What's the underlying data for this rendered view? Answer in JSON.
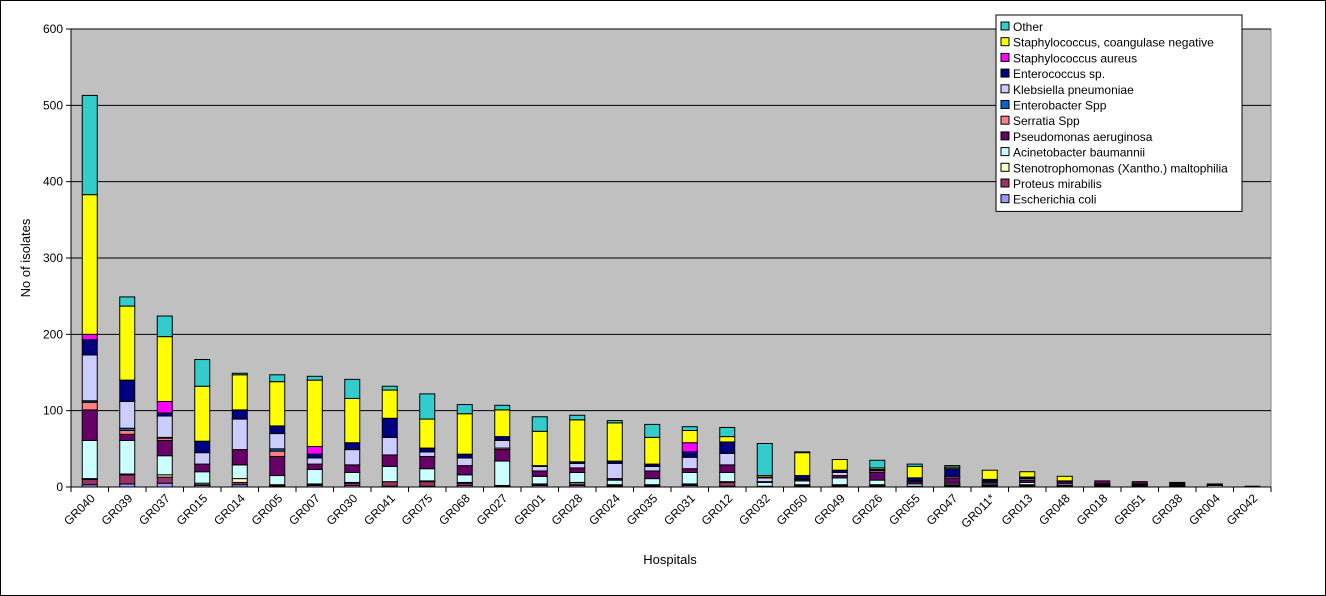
{
  "chart_data": {
    "type": "bar",
    "stacked": true,
    "xlabel": "Hospitals",
    "ylabel": "No of isolates",
    "ylim": [
      0,
      600
    ],
    "yticks": [
      0,
      100,
      200,
      300,
      400,
      500,
      600
    ],
    "grid": true,
    "legend_position": "top-right",
    "categories": [
      "GR040",
      "GR039",
      "GR037",
      "GR015",
      "GR014",
      "GR005",
      "GR007",
      "GR030",
      "GR041",
      "GR075",
      "GR068",
      "GR027",
      "GR001",
      "GR028",
      "GR024",
      "GR035",
      "GR031",
      "GR012",
      "GR032",
      "GR050",
      "GR049",
      "GR026",
      "GR055",
      "GR047",
      "GR011*",
      "GR013",
      "GR048",
      "GR018",
      "GR051",
      "GR038",
      "GR004",
      "GR042"
    ],
    "series": [
      {
        "name": "Escherichia coli",
        "color": "#9999FF",
        "values": [
          3,
          4,
          5,
          2,
          3,
          1,
          2,
          2,
          1,
          1,
          2,
          1,
          2,
          2,
          1,
          1,
          2,
          1,
          0,
          1,
          1,
          1,
          0,
          1,
          1,
          1,
          0,
          1,
          1,
          0,
          0,
          0
        ]
      },
      {
        "name": "Proteus mirabilis",
        "color": "#993366",
        "values": [
          7,
          12,
          8,
          1,
          3,
          1,
          1,
          3,
          6,
          6,
          3,
          1,
          1,
          2,
          1,
          1,
          1,
          5,
          0,
          1,
          1,
          1,
          1,
          1,
          1,
          1,
          1,
          1,
          1,
          1,
          0,
          0
        ]
      },
      {
        "name": "Stenotrophomonas (Xantho.) maltophilia",
        "color": "#FFFFCC",
        "values": [
          1,
          1,
          3,
          2,
          5,
          1,
          1,
          1,
          0,
          1,
          1,
          0,
          1,
          2,
          1,
          1,
          1,
          1,
          1,
          1,
          1,
          1,
          0,
          1,
          1,
          1,
          1,
          1,
          1,
          1,
          2,
          0
        ]
      },
      {
        "name": "Acinetobacter baumannii",
        "color": "#CCFFFF",
        "values": [
          50,
          44,
          25,
          15,
          18,
          12,
          19,
          13,
          20,
          16,
          10,
          32,
          10,
          13,
          6,
          8,
          15,
          12,
          5,
          5,
          9,
          6,
          3,
          2,
          2,
          3,
          2,
          1,
          1,
          1,
          1,
          1
        ]
      },
      {
        "name": "Pseudomonas aeruginosa",
        "color": "#660066",
        "values": [
          40,
          8,
          20,
          10,
          20,
          25,
          7,
          10,
          15,
          16,
          12,
          15,
          7,
          6,
          2,
          10,
          5,
          10,
          1,
          2,
          3,
          10,
          3,
          7,
          2,
          3,
          3,
          4,
          3,
          2,
          0,
          0
        ]
      },
      {
        "name": "Serratia Spp",
        "color": "#FF8080",
        "values": [
          10,
          5,
          3,
          0,
          0,
          7,
          0,
          0,
          0,
          0,
          0,
          2,
          0,
          0,
          0,
          0,
          0,
          0,
          0,
          0,
          0,
          0,
          0,
          0,
          0,
          0,
          0,
          0,
          0,
          0,
          0,
          0
        ]
      },
      {
        "name": "Enterobacter Spp",
        "color": "#0066CC",
        "values": [
          2,
          3,
          1,
          0,
          0,
          3,
          0,
          0,
          0,
          0,
          0,
          0,
          0,
          0,
          0,
          0,
          0,
          0,
          0,
          0,
          0,
          0,
          0,
          0,
          0,
          0,
          0,
          0,
          0,
          0,
          0,
          0
        ]
      },
      {
        "name": "Klebsiella pneumoniae",
        "color": "#CCCCFF",
        "values": [
          60,
          35,
          28,
          15,
          40,
          20,
          8,
          20,
          23,
          6,
          10,
          10,
          6,
          6,
          20,
          6,
          15,
          15,
          5,
          1,
          4,
          2,
          1,
          2,
          1,
          2,
          1,
          0,
          0,
          0,
          0,
          0
        ]
      },
      {
        "name": "Enterococcus sp.",
        "color": "#000080",
        "values": [
          20,
          28,
          4,
          15,
          12,
          10,
          5,
          9,
          25,
          5,
          5,
          5,
          1,
          2,
          3,
          3,
          7,
          15,
          1,
          4,
          3,
          2,
          4,
          10,
          2,
          2,
          0,
          0,
          0,
          1,
          0,
          0
        ]
      },
      {
        "name": "Staphylococcus aureus",
        "color": "#FF00FF",
        "values": [
          7,
          0,
          15,
          0,
          0,
          0,
          10,
          0,
          0,
          0,
          0,
          0,
          0,
          0,
          0,
          0,
          12,
          0,
          0,
          0,
          0,
          0,
          0,
          0,
          0,
          0,
          0,
          0,
          0,
          0,
          0,
          0
        ]
      },
      {
        "name": "Staphylococcus, coangulase negative",
        "color": "#FFFF00",
        "values": [
          183,
          97,
          85,
          72,
          46,
          58,
          87,
          58,
          37,
          38,
          53,
          35,
          45,
          55,
          50,
          35,
          16,
          7,
          2,
          30,
          14,
          2,
          15,
          2,
          12,
          7,
          6,
          0,
          0,
          0,
          1,
          0
        ]
      },
      {
        "name": "Other",
        "color": "#33CCCC",
        "values": [
          130,
          12,
          27,
          35,
          2,
          9,
          5,
          25,
          5,
          33,
          12,
          6,
          19,
          6,
          3,
          17,
          5,
          12,
          42,
          1,
          0,
          10,
          3,
          2,
          0,
          0,
          0,
          0,
          0,
          0,
          0,
          0
        ]
      }
    ]
  }
}
